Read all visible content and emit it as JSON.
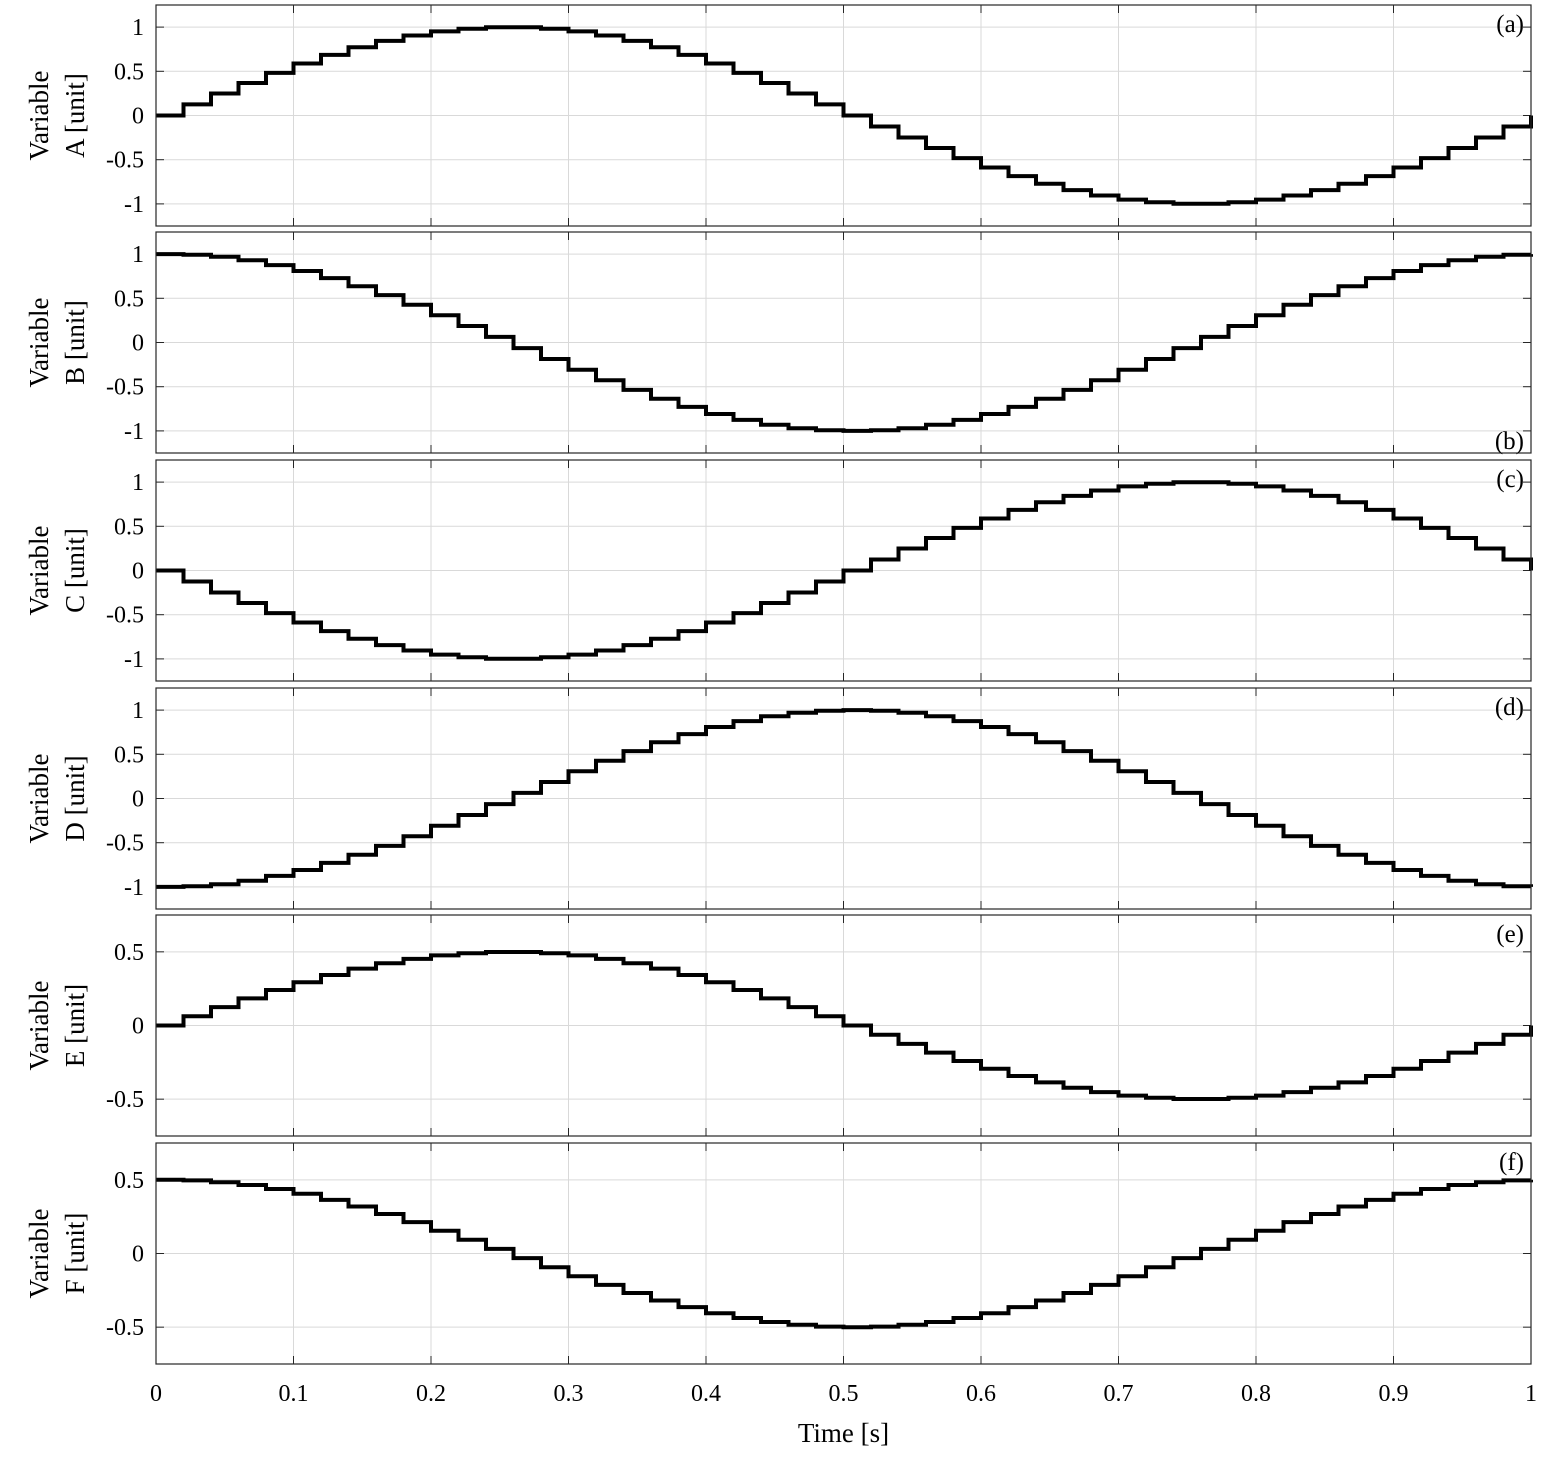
{
  "chart_data": {
    "type": "line",
    "step": true,
    "x_label": "Time [s]",
    "x_ticks": [
      "0",
      "0.1",
      "0.2",
      "0.3",
      "0.4",
      "0.5",
      "0.6",
      "0.7",
      "0.8",
      "0.9",
      "1"
    ],
    "xlim": [
      0,
      1
    ],
    "grid": true,
    "sample_period": 0.02,
    "line_color": "#000000",
    "panels": [
      {
        "tag": "(a)",
        "tag_position": "top-right",
        "ylabel_line1": "Variable",
        "ylabel_line2": "A [unit]",
        "ylim": [
          -1.25,
          1.25
        ],
        "y_ticks": [
          "1",
          "0.5",
          "0",
          "-0.5",
          "-1"
        ],
        "y_tick_values": [
          1,
          0.5,
          0,
          -0.5,
          -1
        ],
        "amplitude": 1,
        "phase_deg": 0,
        "frequency_hz": 1,
        "values": [
          0,
          0.125,
          0.249,
          0.368,
          0.482,
          0.588,
          0.685,
          0.771,
          0.844,
          0.905,
          0.951,
          0.982,
          0.998,
          0.998,
          0.982,
          0.951,
          0.905,
          0.844,
          0.771,
          0.685,
          0.588,
          0.482,
          0.368,
          0.249,
          0.125,
          0,
          -0.125,
          -0.249,
          -0.368,
          -0.482,
          -0.588,
          -0.685,
          -0.771,
          -0.844,
          -0.905,
          -0.951,
          -0.982,
          -0.998,
          -0.998,
          -0.982,
          -0.951,
          -0.905,
          -0.844,
          -0.771,
          -0.685,
          -0.588,
          -0.482,
          -0.368,
          -0.249,
          -0.125,
          0
        ]
      },
      {
        "tag": "(b)",
        "tag_position": "bottom-right",
        "ylabel_line1": "Variable",
        "ylabel_line2": "B [unit]",
        "ylim": [
          -1.25,
          1.25
        ],
        "y_ticks": [
          "1",
          "0.5",
          "0",
          "-0.5",
          "-1"
        ],
        "y_tick_values": [
          1,
          0.5,
          0,
          -0.5,
          -1
        ],
        "amplitude": 1,
        "phase_deg": 90,
        "frequency_hz": 1,
        "values": [
          1,
          0.992,
          0.969,
          0.93,
          0.876,
          0.809,
          0.729,
          0.637,
          0.536,
          0.426,
          0.309,
          0.187,
          0.063,
          -0.063,
          -0.187,
          -0.309,
          -0.426,
          -0.536,
          -0.637,
          -0.729,
          -0.809,
          -0.876,
          -0.93,
          -0.969,
          -0.992,
          -1,
          -0.992,
          -0.969,
          -0.93,
          -0.876,
          -0.809,
          -0.729,
          -0.637,
          -0.536,
          -0.426,
          -0.309,
          -0.187,
          -0.063,
          0.063,
          0.187,
          0.309,
          0.426,
          0.536,
          0.637,
          0.729,
          0.809,
          0.876,
          0.93,
          0.969,
          0.992,
          1
        ]
      },
      {
        "tag": "(c)",
        "tag_position": "top-right",
        "ylabel_line1": "Variable",
        "ylabel_line2": "C [unit]",
        "ylim": [
          -1.25,
          1.25
        ],
        "y_ticks": [
          "1",
          "0.5",
          "0",
          "-0.5",
          "-1"
        ],
        "y_tick_values": [
          1,
          0.5,
          0,
          -0.5,
          -1
        ],
        "amplitude": 1,
        "phase_deg": 180,
        "frequency_hz": 1,
        "values": [
          0,
          -0.125,
          -0.249,
          -0.368,
          -0.482,
          -0.588,
          -0.685,
          -0.771,
          -0.844,
          -0.905,
          -0.951,
          -0.982,
          -0.998,
          -0.998,
          -0.982,
          -0.951,
          -0.905,
          -0.844,
          -0.771,
          -0.685,
          -0.588,
          -0.482,
          -0.368,
          -0.249,
          -0.125,
          0,
          0.125,
          0.249,
          0.368,
          0.482,
          0.588,
          0.685,
          0.771,
          0.844,
          0.905,
          0.951,
          0.982,
          0.998,
          0.998,
          0.982,
          0.951,
          0.905,
          0.844,
          0.771,
          0.685,
          0.588,
          0.482,
          0.368,
          0.249,
          0.125,
          0
        ]
      },
      {
        "tag": "(d)",
        "tag_position": "top-right",
        "ylabel_line1": "Variable",
        "ylabel_line2": "D [unit]",
        "ylim": [
          -1.25,
          1.25
        ],
        "y_ticks": [
          "1",
          "0.5",
          "0",
          "-0.5",
          "-1"
        ],
        "y_tick_values": [
          1,
          0.5,
          0,
          -0.5,
          -1
        ],
        "amplitude": 1,
        "phase_deg": 270,
        "frequency_hz": 1,
        "values": [
          -1,
          -0.992,
          -0.969,
          -0.93,
          -0.876,
          -0.809,
          -0.729,
          -0.637,
          -0.536,
          -0.426,
          -0.309,
          -0.187,
          -0.063,
          0.063,
          0.187,
          0.309,
          0.426,
          0.536,
          0.637,
          0.729,
          0.809,
          0.876,
          0.93,
          0.969,
          0.992,
          1,
          0.992,
          0.969,
          0.93,
          0.876,
          0.809,
          0.729,
          0.637,
          0.536,
          0.426,
          0.309,
          0.187,
          0.063,
          -0.063,
          -0.187,
          -0.309,
          -0.426,
          -0.536,
          -0.637,
          -0.729,
          -0.809,
          -0.876,
          -0.93,
          -0.969,
          -0.992,
          -1
        ]
      },
      {
        "tag": "(e)",
        "tag_position": "top-right",
        "ylabel_line1": "Variable",
        "ylabel_line2": "E [unit]",
        "ylim": [
          -0.75,
          0.75
        ],
        "y_ticks": [
          "0.5",
          "0",
          "-0.5"
        ],
        "y_tick_values": [
          0.5,
          0,
          -0.5
        ],
        "amplitude": 0.5,
        "phase_deg": 0,
        "frequency_hz": 1,
        "values": [
          0,
          0.063,
          0.125,
          0.184,
          0.241,
          0.294,
          0.343,
          0.386,
          0.422,
          0.452,
          0.476,
          0.491,
          0.499,
          0.499,
          0.491,
          0.476,
          0.452,
          0.422,
          0.386,
          0.343,
          0.294,
          0.241,
          0.184,
          0.125,
          0.063,
          0,
          -0.063,
          -0.125,
          -0.184,
          -0.241,
          -0.294,
          -0.343,
          -0.386,
          -0.422,
          -0.452,
          -0.476,
          -0.491,
          -0.499,
          -0.499,
          -0.491,
          -0.476,
          -0.452,
          -0.422,
          -0.386,
          -0.343,
          -0.294,
          -0.241,
          -0.184,
          -0.125,
          -0.063,
          0
        ]
      },
      {
        "tag": "(f)",
        "tag_position": "top-right",
        "ylabel_line1": "Variable",
        "ylabel_line2": "F [unit]",
        "ylim": [
          -0.75,
          0.75
        ],
        "y_ticks": [
          "0.5",
          "0",
          "-0.5"
        ],
        "y_tick_values": [
          0.5,
          0,
          -0.5
        ],
        "amplitude": 0.5,
        "phase_deg": 90,
        "frequency_hz": 1,
        "values": [
          0.5,
          0.496,
          0.484,
          0.465,
          0.438,
          0.405,
          0.364,
          0.319,
          0.268,
          0.213,
          0.155,
          0.094,
          0.031,
          -0.031,
          -0.094,
          -0.155,
          -0.213,
          -0.268,
          -0.319,
          -0.364,
          -0.405,
          -0.438,
          -0.465,
          -0.484,
          -0.496,
          -0.5,
          -0.496,
          -0.484,
          -0.465,
          -0.438,
          -0.405,
          -0.364,
          -0.319,
          -0.268,
          -0.213,
          -0.155,
          -0.094,
          -0.031,
          0.031,
          0.094,
          0.155,
          0.213,
          0.268,
          0.319,
          0.364,
          0.405,
          0.438,
          0.465,
          0.484,
          0.496,
          0.5
        ]
      }
    ]
  }
}
